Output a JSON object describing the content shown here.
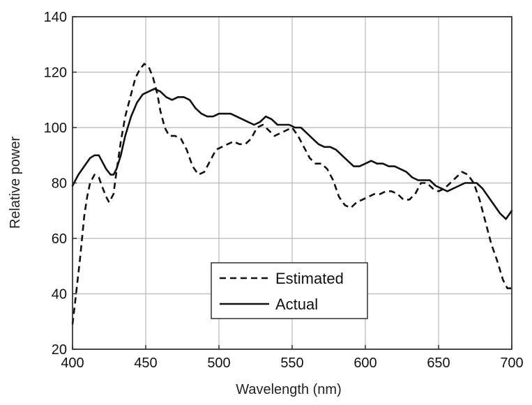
{
  "chart_data": {
    "type": "line",
    "title": "",
    "xlabel": "Wavelength (nm)",
    "ylabel": "Relative power",
    "xlim": [
      400,
      700
    ],
    "ylim": [
      20,
      140
    ],
    "xticks": [
      400,
      450,
      500,
      550,
      600,
      650,
      700
    ],
    "yticks": [
      20,
      40,
      60,
      80,
      100,
      120,
      140
    ],
    "grid": true,
    "legend_position": "lower-center",
    "series": [
      {
        "name": "Estimated",
        "style": "dashed",
        "color": "#111111",
        "x": [
          400,
          402,
          405,
          408,
          410,
          412,
          415,
          418,
          420,
          423,
          425,
          428,
          430,
          433,
          436,
          440,
          443,
          446,
          449,
          452,
          455,
          458,
          460,
          463,
          466,
          470,
          474,
          478,
          482,
          486,
          490,
          494,
          498,
          502,
          506,
          510,
          514,
          518,
          522,
          526,
          530,
          534,
          538,
          542,
          546,
          550,
          554,
          558,
          562,
          566,
          570,
          574,
          578,
          582,
          586,
          590,
          594,
          598,
          602,
          606,
          610,
          614,
          618,
          622,
          626,
          630,
          634,
          638,
          642,
          646,
          650,
          654,
          658,
          662,
          666,
          670,
          674,
          678,
          682,
          686,
          690,
          694,
          697,
          700
        ],
        "y": [
          29,
          38,
          52,
          68,
          75,
          80,
          83,
          82,
          79,
          75,
          73,
          76,
          84,
          95,
          104,
          112,
          118,
          121,
          123,
          122,
          118,
          112,
          106,
          100,
          97,
          97,
          96,
          92,
          86,
          83,
          84,
          88,
          92,
          93,
          94,
          95,
          94,
          94,
          96,
          100,
          101,
          99,
          97,
          98,
          99,
          100,
          97,
          93,
          89,
          87,
          87,
          85,
          81,
          75,
          72,
          71,
          73,
          74,
          75,
          76,
          76,
          77,
          77,
          76,
          74,
          74,
          76,
          80,
          80,
          78,
          77,
          78,
          80,
          82,
          84,
          83,
          80,
          74,
          66,
          58,
          52,
          45,
          42,
          42
        ]
      },
      {
        "name": "Actual",
        "style": "solid",
        "color": "#111111",
        "x": [
          400,
          404,
          408,
          412,
          415,
          418,
          420,
          423,
          426,
          428,
          430,
          433,
          436,
          440,
          444,
          448,
          452,
          456,
          460,
          464,
          468,
          472,
          476,
          480,
          484,
          488,
          492,
          496,
          500,
          504,
          508,
          512,
          516,
          520,
          524,
          528,
          532,
          536,
          540,
          544,
          548,
          552,
          556,
          560,
          564,
          568,
          572,
          576,
          580,
          584,
          588,
          592,
          596,
          600,
          604,
          608,
          612,
          616,
          620,
          624,
          628,
          632,
          636,
          640,
          644,
          648,
          652,
          656,
          660,
          664,
          668,
          672,
          676,
          680,
          684,
          688,
          692,
          696,
          700
        ],
        "y": [
          79,
          83,
          86,
          89,
          90,
          90,
          88,
          85,
          83,
          83,
          85,
          90,
          97,
          104,
          109,
          112,
          113,
          114,
          113,
          111,
          110,
          111,
          111,
          110,
          107,
          105,
          104,
          104,
          105,
          105,
          105,
          104,
          103,
          102,
          101,
          102,
          104,
          103,
          101,
          101,
          101,
          100,
          100,
          98,
          96,
          94,
          93,
          93,
          92,
          90,
          88,
          86,
          86,
          87,
          88,
          87,
          87,
          86,
          86,
          85,
          84,
          82,
          81,
          81,
          81,
          79,
          78,
          77,
          78,
          79,
          80,
          80,
          80,
          78,
          75,
          72,
          69,
          67,
          70
        ]
      }
    ]
  }
}
